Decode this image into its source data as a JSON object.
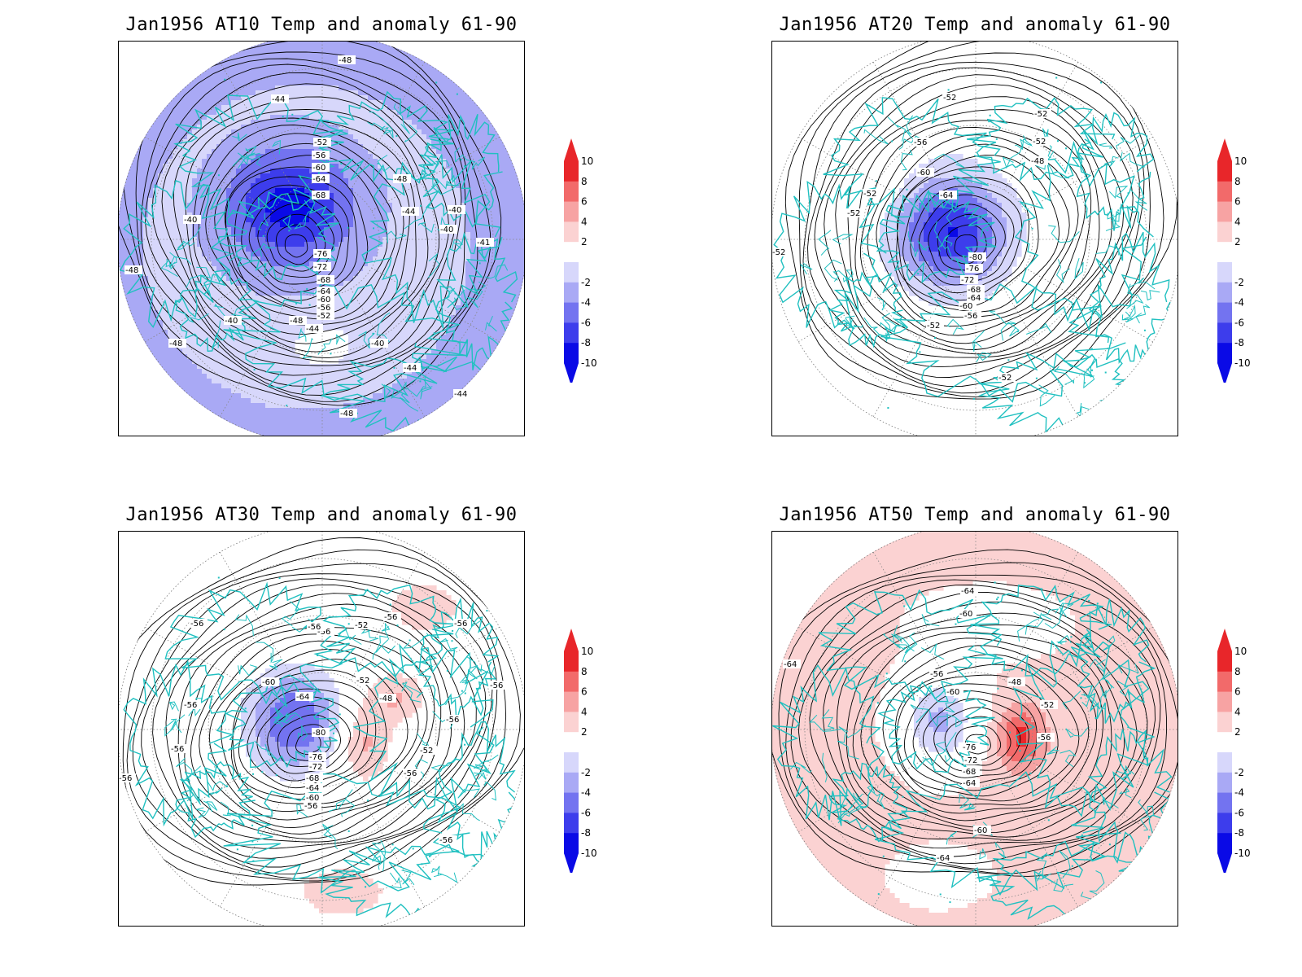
{
  "panels": [
    {
      "id": "at10",
      "title": "Jan1956 AT10 Temp and anomaly 61-90",
      "anom_bias": -1,
      "labels": [
        "-48",
        "-44",
        "-52",
        "-56",
        "-60",
        "-64",
        "-68",
        "-48",
        "-44",
        "-40",
        "-40",
        "-41",
        "-48",
        "-40",
        "-76",
        "-72",
        "-68",
        "-64",
        "-60",
        "-56",
        "-52",
        "-48",
        "-44",
        "-40",
        "-40",
        "-44",
        "-44",
        "-48",
        "-48"
      ]
    },
    {
      "id": "at20",
      "title": "Jan1956 AT20 Temp and anomaly 61-90",
      "anom_bias": 0,
      "labels": [
        "-52",
        "-52",
        "-52",
        "-48",
        "-56",
        "-60",
        "-64",
        "-52",
        "-52",
        "-52",
        "-80",
        "-76",
        "-72",
        "-68",
        "-64",
        "-60",
        "-56",
        "-52",
        "-52"
      ]
    },
    {
      "id": "at30",
      "title": "Jan1956 AT30 Temp and anomaly 61-90",
      "anom_bias": 0,
      "labels": [
        "-56",
        "-56",
        "-56",
        "-52",
        "-56",
        "-56",
        "-60",
        "-64",
        "-48",
        "-56",
        "-56",
        "-80",
        "-76",
        "-72",
        "-68",
        "-64",
        "-60",
        "-56",
        "-52",
        "-52",
        "-56",
        "-56",
        "-56",
        "-56",
        "-56"
      ]
    },
    {
      "id": "at50",
      "title": "Jan1956 AT50 Temp and anomaly 61-90",
      "anom_bias": 1,
      "labels": [
        "-64",
        "-60",
        "-64",
        "-56",
        "-60",
        "-48",
        "-52",
        "-56",
        "-76",
        "-72",
        "-68",
        "-64",
        "-60",
        "-64"
      ]
    }
  ],
  "colorbar": {
    "ticks": [
      "10",
      "8",
      "6",
      "4",
      "2",
      "-2",
      "-4",
      "-6",
      "-8",
      "-10"
    ],
    "colors": [
      "#e8262a",
      "#f26a6a",
      "#f7a3a3",
      "#fbd2d2",
      "#ffffff",
      "#d7d7fb",
      "#a9a9f5",
      "#7373f0",
      "#3d3dec",
      "#0a0ae6"
    ],
    "top_arrow_color": "#e8262a",
    "bottom_arrow_color": "#0a0ae6"
  },
  "style": {
    "coast_color": "#20c0c0",
    "contour_color": "#000000",
    "grid_color": "#888888"
  }
}
